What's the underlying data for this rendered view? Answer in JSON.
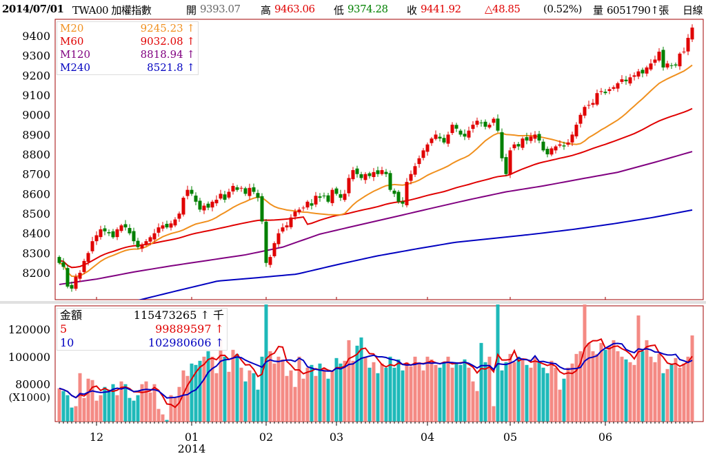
{
  "header": {
    "date": "2014/07/01",
    "symbol": "TWA00 加權指數",
    "open_label": "開",
    "open": "9393.07",
    "high_label": "高",
    "high": "9463.06",
    "low_label": "低",
    "low": "9374.28",
    "close_label": "收",
    "close": "9441.92",
    "change": "△48.85",
    "change_pct": "(0.52%)",
    "volume_label": "量",
    "volume": "6051790↑張",
    "period": "日線"
  },
  "price_legend": [
    {
      "name": "M20",
      "value": "9245.23 ↑",
      "color": "#f0901e"
    },
    {
      "name": "M60",
      "value": "9032.08 ↑",
      "color": "#e00000"
    },
    {
      "name": "M120",
      "value": "8818.94 ↑",
      "color": "#800080"
    },
    {
      "name": "M240",
      "value": "8521.8 ↑",
      "color": "#0000c0"
    }
  ],
  "volume_legend": [
    {
      "name": "金額",
      "value": "115473265 ↑ 千",
      "color": "#000000"
    },
    {
      "name": "5",
      "value": "99889597 ↑",
      "color": "#e00000"
    },
    {
      "name": "10",
      "value": "102980606 ↑",
      "color": "#0000c0"
    }
  ],
  "colors": {
    "up": "#e00000",
    "down": "#008000",
    "vol_up": "#f48a84",
    "vol_down": "#1eb9b9",
    "frame": "#a00000"
  },
  "chart_data": [
    {
      "type": "candlestick",
      "title": "TWA00 加權指數 日線",
      "ylim": [
        8064,
        9484
      ],
      "yticks": [
        "8200",
        "8300",
        "8400",
        "8500",
        "8600",
        "8700",
        "8800",
        "8900",
        "9000",
        "9100",
        "9200",
        "9300",
        "9400"
      ],
      "closes": [
        8250,
        8230,
        8130,
        8120,
        8180,
        8200,
        8260,
        8300,
        8360,
        8390,
        8420,
        8410,
        8400,
        8380,
        8420,
        8440,
        8430,
        8400,
        8360,
        8330,
        8340,
        8360,
        8380,
        8400,
        8430,
        8440,
        8430,
        8450,
        8470,
        8500,
        8580,
        8620,
        8600,
        8560,
        8520,
        8540,
        8530,
        8560,
        8570,
        8600,
        8570,
        8610,
        8640,
        8620,
        8630,
        8600,
        8630,
        8610,
        8580,
        8460,
        8250,
        8280,
        8350,
        8400,
        8430,
        8440,
        8480,
        8510,
        8520,
        8530,
        8560,
        8540,
        8590,
        8580,
        8590,
        8560,
        8620,
        8600,
        8580,
        8600,
        8680,
        8720,
        8700,
        8680,
        8700,
        8690,
        8710,
        8700,
        8720,
        8700,
        8620,
        8600,
        8560,
        8550,
        8660,
        8700,
        8740,
        8780,
        8820,
        8850,
        8880,
        8900,
        8880,
        8860,
        8900,
        8950,
        8930,
        8900,
        8890,
        8920,
        8950,
        8970,
        8960,
        8940,
        8950,
        8980,
        8920,
        8780,
        8700,
        8820,
        8850,
        8840,
        8880,
        8870,
        8890,
        8900,
        8870,
        8820,
        8800,
        8830,
        8840,
        8850,
        8840,
        8860,
        8900,
        8950,
        9000,
        9040,
        9050,
        9060,
        9110,
        9120,
        9110,
        9130,
        9140,
        9160,
        9180,
        9170,
        9190,
        9200,
        9220,
        9210,
        9240,
        9260,
        9280,
        9320,
        9240,
        9260,
        9250,
        9250,
        9310,
        9320,
        9390,
        9441.92
      ],
      "ma120_samples": [
        8141,
        8168,
        8204,
        8235,
        8263,
        8291,
        8330,
        8396,
        8440,
        8483,
        8527,
        8570,
        8610,
        8640,
        8675,
        8709,
        8760,
        8814
      ],
      "ma240_samples": [
        7990,
        8020,
        8061,
        8110,
        8158,
        8175,
        8193,
        8240,
        8284,
        8320,
        8354,
        8375,
        8396,
        8420,
        8448,
        8480,
        8518
      ],
      "x_ticks": [
        {
          "label": "12",
          "index": 9
        },
        {
          "label": "01",
          "index": 32
        },
        {
          "label": "02",
          "index": 50
        },
        {
          "label": "03",
          "index": 67
        },
        {
          "label": "04",
          "index": 89
        },
        {
          "label": "05",
          "index": 109
        },
        {
          "label": "06",
          "index": 132
        }
      ],
      "year_label": "2014"
    },
    {
      "type": "bar",
      "title": "金額",
      "ylabel": "(X1000)",
      "ylim": [
        52800,
        137000
      ],
      "yticks": [
        "80000",
        "100000",
        "120000"
      ],
      "values": [
        77000,
        75000,
        72000,
        63000,
        64000,
        88000,
        70000,
        84000,
        83000,
        68000,
        72000,
        78000,
        76000,
        80000,
        72000,
        82000,
        80000,
        70000,
        68000,
        72000,
        80000,
        82000,
        74000,
        80000,
        62000,
        58000,
        54000,
        72000,
        70000,
        78000,
        90000,
        86000,
        95000,
        94000,
        97000,
        100000,
        104000,
        100000,
        88000,
        113000,
        100000,
        89000,
        105000,
        102000,
        92000,
        82000,
        90000,
        88000,
        76000,
        100000,
        138000,
        104000,
        95000,
        100000,
        98000,
        86000,
        90000,
        78000,
        100000,
        84000,
        92000,
        94000,
        86000,
        95000,
        92000,
        84000,
        90000,
        99000,
        95000,
        97000,
        112000,
        97000,
        108000,
        114000,
        100000,
        92000,
        96000,
        88000,
        95000,
        92000,
        100000,
        92000,
        98000,
        90000,
        96000,
        93000,
        100000,
        96000,
        90000,
        100000,
        98000,
        94000,
        92000,
        96000,
        100000,
        92000,
        96000,
        94000,
        98000,
        92000,
        82000,
        75000,
        110000,
        96000,
        100000,
        64000,
        138000,
        90000,
        96000,
        102000,
        96000,
        100000,
        98000,
        94000,
        92000,
        100000,
        96000,
        92000,
        88000,
        97000,
        92000,
        76000,
        84000,
        92000,
        95000,
        102000,
        104000,
        138000,
        110000,
        104000,
        102000,
        110000,
        105000,
        108000,
        112000,
        104000,
        100000,
        98000,
        96000,
        94000,
        130000,
        104000,
        112000,
        100000,
        96000,
        102000,
        88000,
        91000,
        95000,
        99000,
        92000,
        95000,
        100000,
        115473
      ]
    }
  ]
}
